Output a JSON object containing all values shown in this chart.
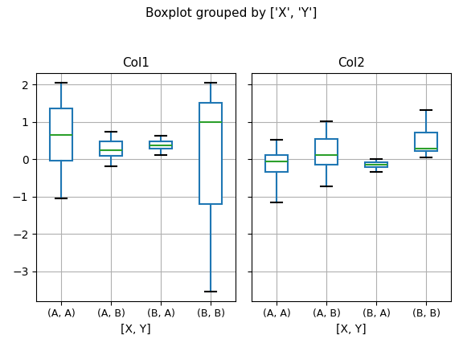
{
  "title": "Boxplot grouped by ['X', 'Y']",
  "col_titles": [
    "Col1",
    "Col2"
  ],
  "group_labels": [
    "(A, A)",
    "(A, B)",
    "(B, A)",
    "(B, B)"
  ],
  "xlabel": "[X, Y]",
  "col1_boxes": [
    {
      "q1": -0.05,
      "median": 0.65,
      "q3": 1.35,
      "whislo": -1.05,
      "whishi": 2.05,
      "fliers": []
    },
    {
      "q1": 0.08,
      "median": 0.25,
      "q3": 0.47,
      "whislo": -0.2,
      "whishi": 0.73,
      "fliers": []
    },
    {
      "q1": 0.28,
      "median": 0.37,
      "q3": 0.47,
      "whislo": 0.1,
      "whishi": 0.63,
      "fliers": []
    },
    {
      "q1": -1.2,
      "median": 1.0,
      "q3": 1.5,
      "whislo": -3.55,
      "whishi": 2.05,
      "fliers": []
    }
  ],
  "col2_boxes": [
    {
      "q1": -0.35,
      "median": -0.07,
      "q3": 0.1,
      "whislo": -1.15,
      "whishi": 0.52,
      "fliers": []
    },
    {
      "q1": -0.15,
      "median": 0.12,
      "q3": 0.55,
      "whislo": -0.72,
      "whishi": 1.02,
      "fliers": []
    },
    {
      "q1": -0.22,
      "median": -0.15,
      "q3": -0.08,
      "whislo": -0.35,
      "whishi": 0.01,
      "fliers": []
    },
    {
      "q1": 0.22,
      "median": 0.28,
      "q3": 0.72,
      "whislo": 0.05,
      "whishi": 1.32,
      "fliers": []
    }
  ],
  "box_color": "#1f77b4",
  "median_color": "#2ca02c",
  "whisker_color": "#1f77b4",
  "cap_color": "#000000",
  "grid_color": "#b0b0b0",
  "ylim": [
    -3.8,
    2.3
  ],
  "yticks": [
    -3,
    -2,
    -1,
    0,
    1,
    2
  ],
  "figsize": [
    5.76,
    4.32
  ],
  "dpi": 100,
  "title_fontsize": 11,
  "subtitle_fontsize": 11,
  "tick_fontsize": 9,
  "label_fontsize": 10
}
